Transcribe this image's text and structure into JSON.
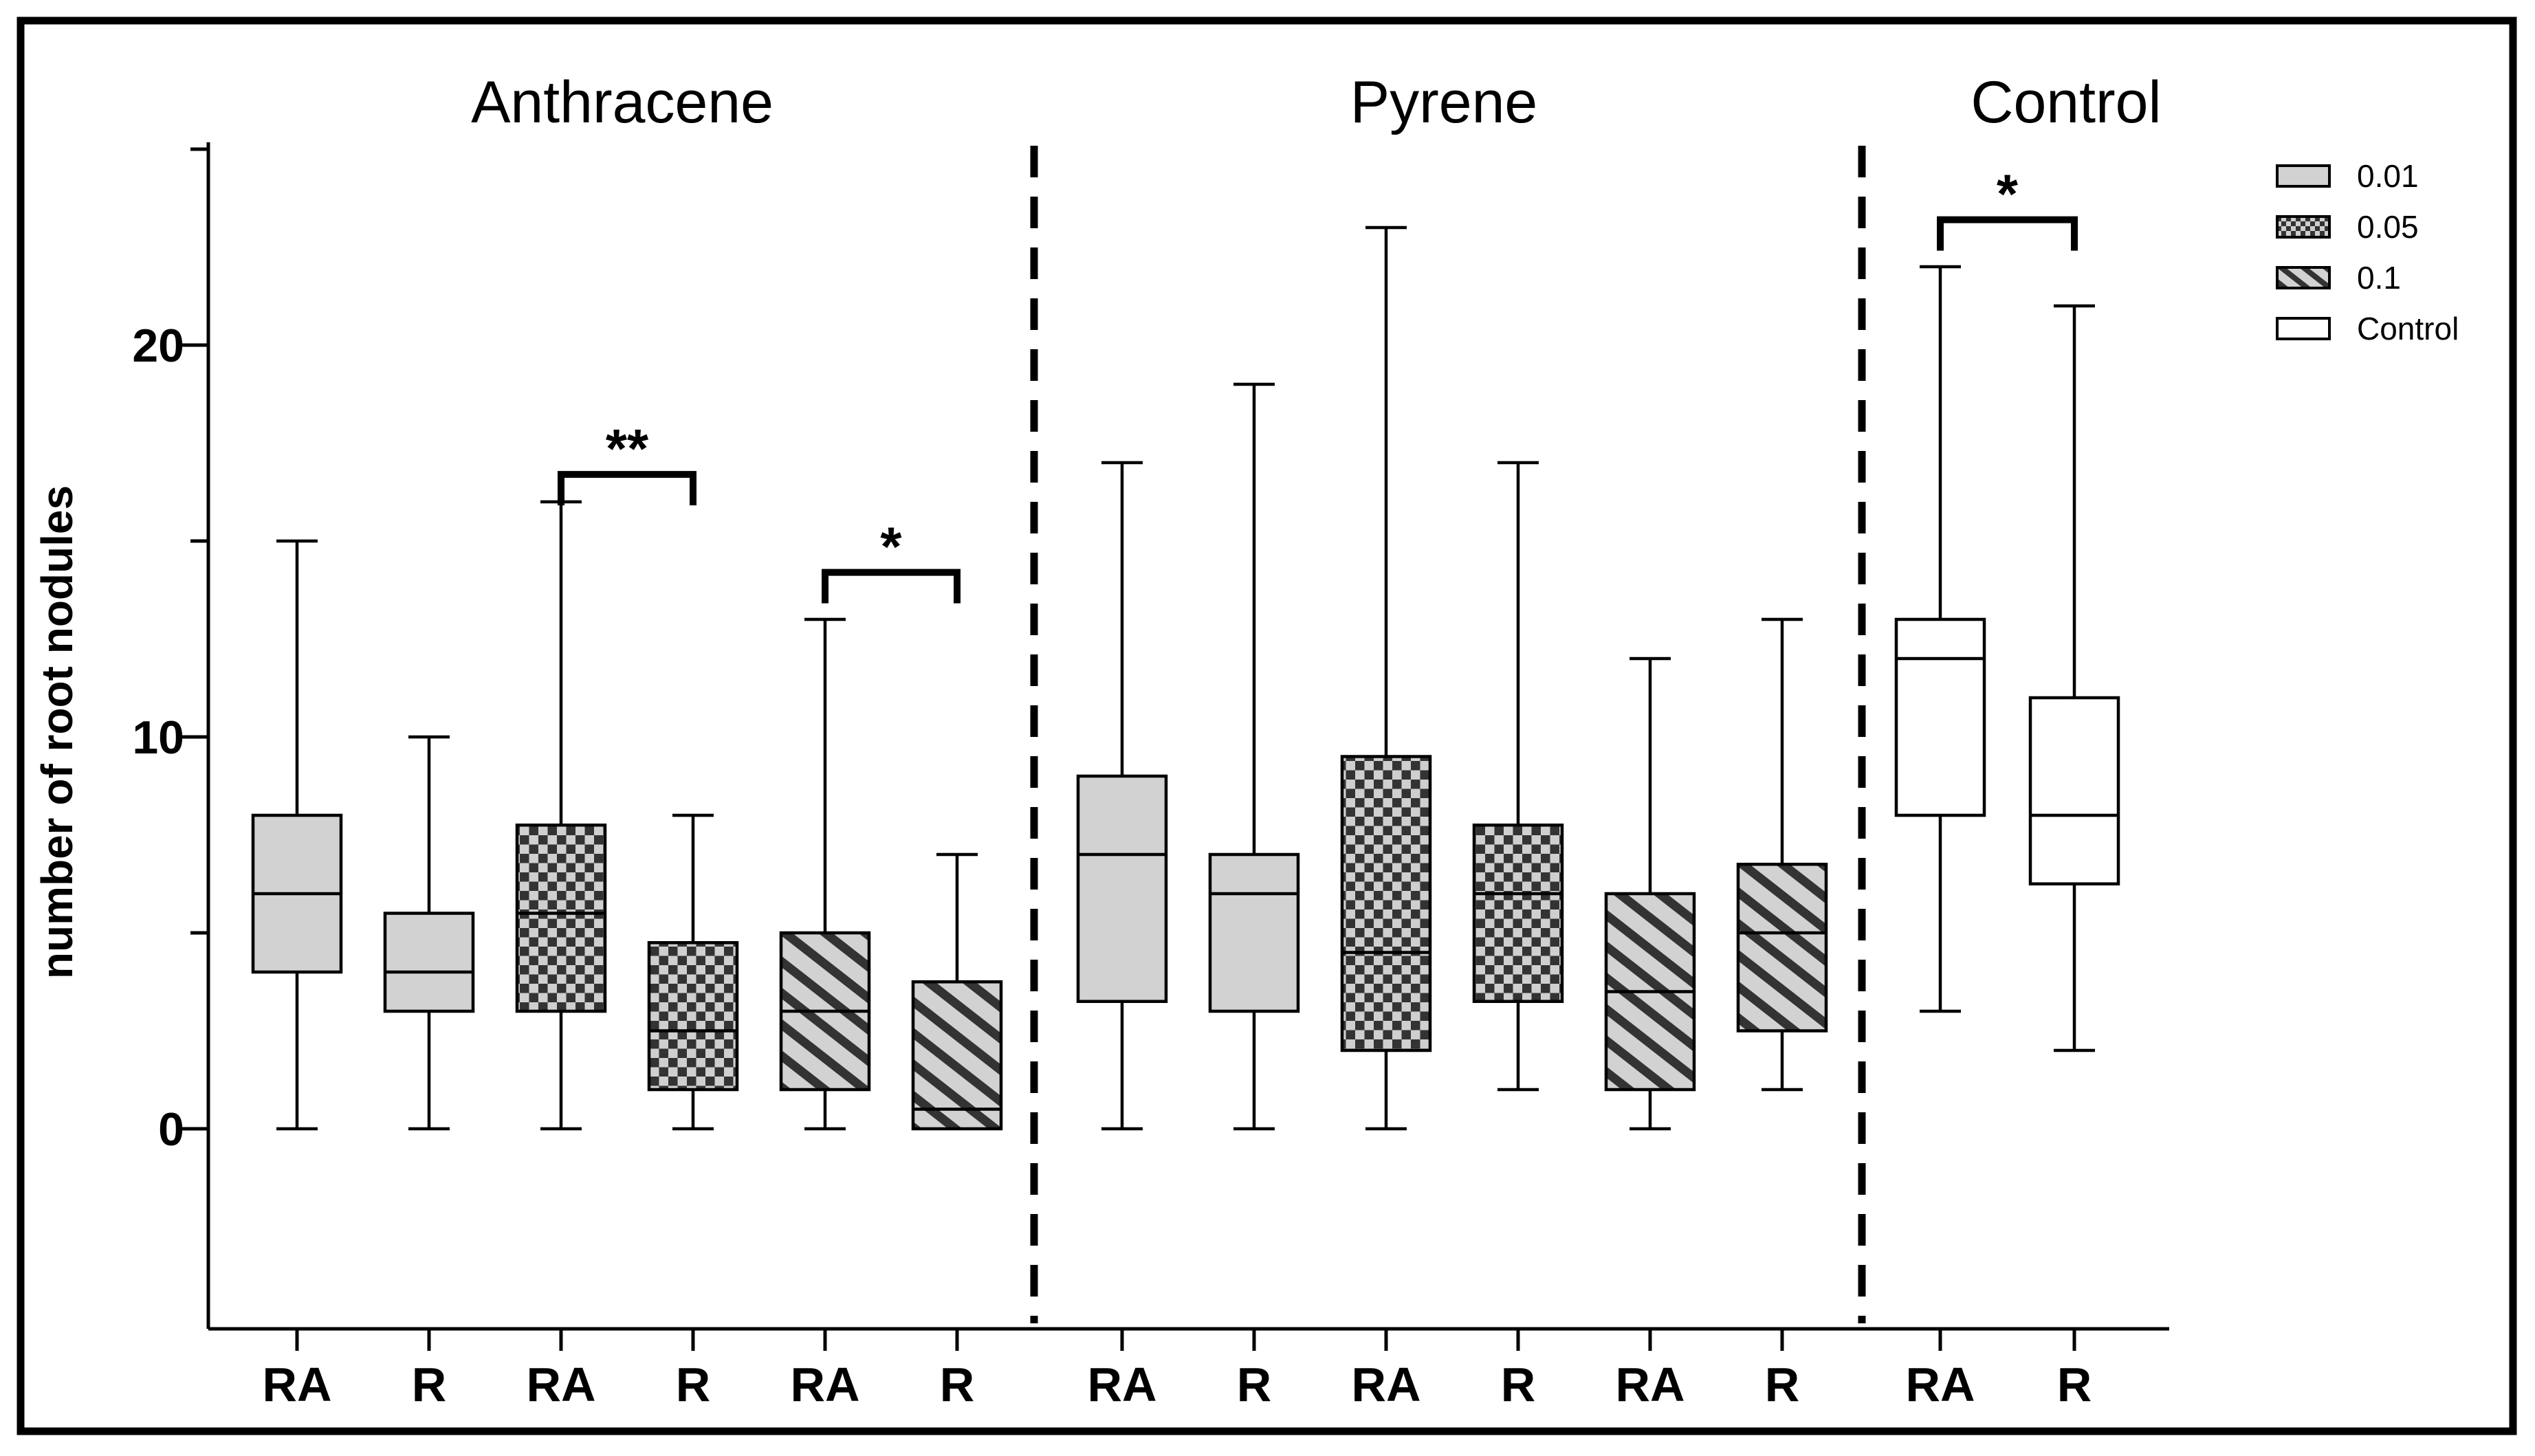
{
  "chart_data": {
    "type": "boxplot",
    "ylabel": "number of root nodules",
    "ylim": [
      -5,
      25
    ],
    "y_major_ticks": [
      0,
      10,
      20
    ],
    "y_minor_ticks": [
      5,
      15,
      25
    ],
    "grid": false,
    "legend_position": "top-right",
    "legend": [
      {
        "label": "0.01",
        "style": "gray"
      },
      {
        "label": "0.05",
        "style": "checker"
      },
      {
        "label": "0.1",
        "style": "stripes"
      },
      {
        "label": "Control",
        "style": "white"
      }
    ],
    "sections": [
      {
        "title": "Anthracene",
        "groups": [
          {
            "x_label": "RA",
            "series": "0.01",
            "style": "gray",
            "min": 0,
            "q1": 4,
            "median": 6,
            "q3": 8,
            "max": 15
          },
          {
            "x_label": "R",
            "series": "0.01",
            "style": "gray",
            "min": 0,
            "q1": 3,
            "median": 4,
            "q3": 5.5,
            "max": 10
          },
          {
            "x_label": "RA",
            "series": "0.05",
            "style": "checker",
            "min": 0,
            "q1": 3,
            "median": 5.5,
            "q3": 7.75,
            "max": 16
          },
          {
            "x_label": "R",
            "series": "0.05",
            "style": "checker",
            "min": 0,
            "q1": 1,
            "median": 2.5,
            "q3": 4.75,
            "max": 8
          },
          {
            "x_label": "RA",
            "series": "0.1",
            "style": "stripes",
            "min": 0,
            "q1": 1,
            "median": 3,
            "q3": 5,
            "max": 13
          },
          {
            "x_label": "R",
            "series": "0.1",
            "style": "stripes",
            "min": 0,
            "q1": 0,
            "median": 0.5,
            "q3": 3.75,
            "max": 7
          }
        ]
      },
      {
        "title": "Pyrene",
        "groups": [
          {
            "x_label": "RA",
            "series": "0.01",
            "style": "gray",
            "min": 0,
            "q1": 3.25,
            "median": 7,
            "q3": 9,
            "max": 17
          },
          {
            "x_label": "R",
            "series": "0.01",
            "style": "gray",
            "min": 0,
            "q1": 3,
            "median": 6,
            "q3": 7,
            "max": 19
          },
          {
            "x_label": "RA",
            "series": "0.05",
            "style": "checker",
            "min": 0,
            "q1": 2,
            "median": 4.5,
            "q3": 9.5,
            "max": 23
          },
          {
            "x_label": "R",
            "series": "0.05",
            "style": "checker",
            "min": 1,
            "q1": 3.25,
            "median": 6,
            "q3": 7.75,
            "max": 17
          },
          {
            "x_label": "RA",
            "series": "0.1",
            "style": "stripes",
            "min": 0,
            "q1": 1,
            "median": 3.5,
            "q3": 6,
            "max": 12
          },
          {
            "x_label": "R",
            "series": "0.1",
            "style": "stripes",
            "min": 1,
            "q1": 2.5,
            "median": 5,
            "q3": 6.75,
            "max": 13
          }
        ]
      },
      {
        "title": "Control",
        "groups": [
          {
            "x_label": "RA",
            "series": "Control",
            "style": "white",
            "min": 3,
            "q1": 8,
            "median": 12,
            "q3": 13,
            "max": 22
          },
          {
            "x_label": "R",
            "series": "Control",
            "style": "white",
            "min": 2,
            "q1": 6.25,
            "median": 8,
            "q3": 11,
            "max": 21
          }
        ]
      }
    ],
    "significance": [
      {
        "section": 0,
        "from": 2,
        "to": 3,
        "label": "**",
        "bar_y_value": 16.7
      },
      {
        "section": 0,
        "from": 4,
        "to": 5,
        "label": "*",
        "bar_y_value": 14.2
      },
      {
        "section": 2,
        "from": 0,
        "to": 1,
        "label": "*",
        "bar_y_value": 23.2
      }
    ],
    "colors": {
      "light_gray_fill": "#d2d2d2",
      "pattern_dark": "#333333",
      "white_fill": "#ffffff",
      "line_black": "#000000"
    }
  }
}
